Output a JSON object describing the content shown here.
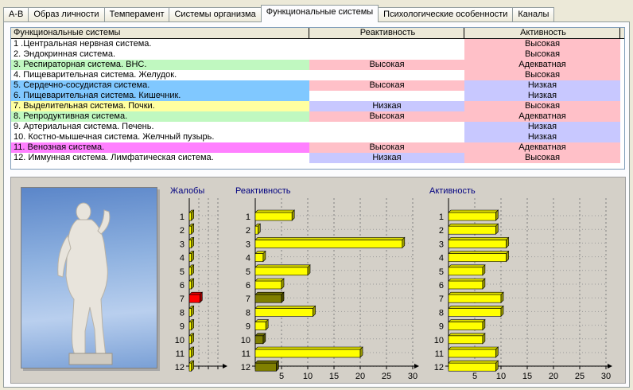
{
  "tabs": [
    {
      "label": "А-В",
      "active": false
    },
    {
      "label": "Образ личности",
      "active": false
    },
    {
      "label": "Темперамент",
      "active": false
    },
    {
      "label": "Системы организма",
      "active": false
    },
    {
      "label": "Функциональные системы",
      "active": true
    },
    {
      "label": "Психологические особенности",
      "active": false
    },
    {
      "label": "Каналы",
      "active": false
    }
  ],
  "grid": {
    "headers": [
      "Функциональные системы",
      "Реактивность",
      "Активность"
    ],
    "rows": [
      {
        "name": "1 .Центральная нервная система.",
        "reactivity": "",
        "activity": "Высокая",
        "name_color": "#ffffff",
        "react_color": "#ffffff",
        "act_color": "#ffc0c8"
      },
      {
        "name": "2. Эндокринная система.",
        "reactivity": "",
        "activity": "Высокая",
        "name_color": "#ffffff",
        "react_color": "#ffffff",
        "act_color": "#ffc0c8"
      },
      {
        "name": "3. Респираторная система. ВНС.",
        "reactivity": "Высокая",
        "activity": "Адекватная",
        "name_color": "#c0f8c0",
        "react_color": "#ffc0c8",
        "act_color": "#ffc0c8"
      },
      {
        "name": "4. Пищеварительная система. Желудок.",
        "reactivity": "",
        "activity": "Высокая",
        "name_color": "#ffffff",
        "react_color": "#ffffff",
        "act_color": "#ffc0c8"
      },
      {
        "name": "5. Сердечно-сосудистая система.",
        "reactivity": "Высокая",
        "activity": "Низкая",
        "name_color": "#80c8ff",
        "react_color": "#ffc0c8",
        "act_color": "#c8c8ff"
      },
      {
        "name": "6. Пищеварительная система. Кишечник.",
        "reactivity": "",
        "activity": "Низкая",
        "name_color": "#80c8ff",
        "react_color": "#ffffff",
        "act_color": "#c8c8ff"
      },
      {
        "name": "7. Выделительная система. Почки.",
        "reactivity": "Низкая",
        "activity": "Высокая",
        "name_color": "#ffffa0",
        "react_color": "#c8c8ff",
        "act_color": "#ffc0c8"
      },
      {
        "name": "8. Репродуктивная система.",
        "reactivity": "Высокая",
        "activity": "Адекватная",
        "name_color": "#c0f8c0",
        "react_color": "#ffc0c8",
        "act_color": "#ffc0c8"
      },
      {
        "name": "9. Артериальная система. Печень.",
        "reactivity": "",
        "activity": "Низкая",
        "name_color": "#ffffff",
        "react_color": "#ffffff",
        "act_color": "#c8c8ff"
      },
      {
        "name": "10. Костно-мышечная система. Желчный пузырь.",
        "reactivity": "",
        "activity": "Низкая",
        "name_color": "#ffffff",
        "react_color": "#ffffff",
        "act_color": "#c8c8ff"
      },
      {
        "name": "11. Венозная система.",
        "reactivity": "Высокая",
        "activity": "Адекватная",
        "name_color": "#ff80ff",
        "react_color": "#ffc0c8",
        "act_color": "#ffc0c8"
      },
      {
        "name": "12. Иммунная система. Лимфатическая система.",
        "reactivity": "Низкая",
        "activity": "Высокая",
        "name_color": "#ffffff",
        "react_color": "#c8c8ff",
        "act_color": "#ffc0c8"
      }
    ]
  },
  "chart_data": [
    {
      "type": "bar",
      "title": "Жалобы",
      "categories": [
        "1",
        "2",
        "3",
        "4",
        "5",
        "6",
        "7",
        "8",
        "9",
        "10",
        "11",
        "12"
      ],
      "values": [
        0.4,
        0.4,
        0.4,
        0.4,
        0.4,
        0.4,
        2,
        0.4,
        0.4,
        0.4,
        0.4,
        0.4
      ],
      "colors": [
        "#ffff00",
        "#ffff00",
        "#ffff00",
        "#ffff00",
        "#ffff00",
        "#ffff00",
        "#ff0000",
        "#ffff00",
        "#ffff00",
        "#ffff00",
        "#ffff00",
        "#ffff00"
      ],
      "xlim": [
        0,
        6
      ],
      "xticks": []
    },
    {
      "type": "bar",
      "title": "Реактивность",
      "categories": [
        "1",
        "2",
        "3",
        "4",
        "5",
        "6",
        "7",
        "8",
        "9",
        "10",
        "11",
        "12"
      ],
      "values": [
        7,
        0.5,
        28,
        1.5,
        10,
        5,
        5,
        11,
        2,
        1.5,
        20,
        4
      ],
      "colors": [
        "#ffff00",
        "#ffff00",
        "#ffff00",
        "#ffff00",
        "#ffff00",
        "#ffff00",
        "#808000",
        "#ffff00",
        "#ffff00",
        "#808000",
        "#ffff00",
        "#808000"
      ],
      "xlim": [
        0,
        30
      ],
      "xticks": [
        5,
        10,
        15,
        20,
        25,
        30
      ]
    },
    {
      "type": "bar",
      "title": "Активность",
      "categories": [
        "1",
        "2",
        "3",
        "4",
        "5",
        "6",
        "7",
        "8",
        "9",
        "10",
        "11",
        "12"
      ],
      "values": [
        9,
        9,
        11,
        11,
        6.5,
        6.5,
        10,
        10,
        6.5,
        6.5,
        9,
        9
      ],
      "colors": [
        "#ffff00",
        "#ffff00",
        "#ffff00",
        "#ffff00",
        "#ffff00",
        "#ffff00",
        "#ffff00",
        "#ffff00",
        "#ffff00",
        "#ffff00",
        "#ffff00",
        "#ffff00"
      ],
      "xlim": [
        0,
        30
      ],
      "xticks": [
        5,
        10,
        15,
        20,
        25,
        30
      ]
    }
  ]
}
